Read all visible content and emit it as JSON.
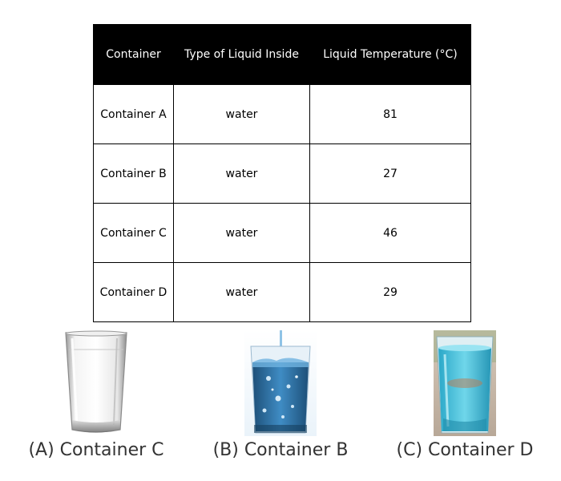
{
  "table": {
    "headers": [
      "Container",
      "Type of Liquid Inside",
      "Liquid Temperature (°C)"
    ],
    "rows": [
      [
        "Container A",
        "water",
        "81"
      ],
      [
        "Container B",
        "water",
        "27"
      ],
      [
        "Container C",
        "water",
        "46"
      ],
      [
        "Container D",
        "water",
        "29"
      ]
    ]
  },
  "options": [
    {
      "label": "(A) Container C",
      "image": "empty-glass-icon"
    },
    {
      "label": "(B) Container B",
      "image": "water-pouring-glass-icon"
    },
    {
      "label": "(C) Container D",
      "image": "blue-water-glass-icon"
    }
  ],
  "colors": {
    "header_bg": "#000000",
    "header_text": "#ffffff",
    "caption_text": "#333333",
    "water_blue": "#2f7fb8",
    "cyan_water": "#3fc3dc"
  }
}
